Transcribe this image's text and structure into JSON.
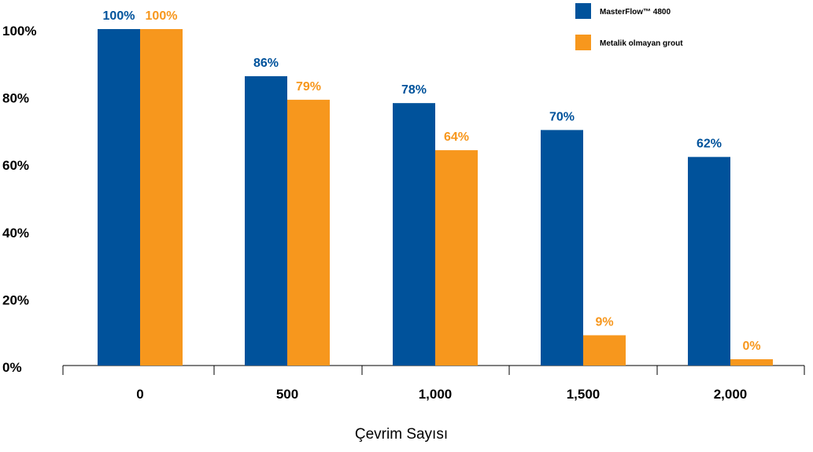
{
  "colors": {
    "series_1": "#00529b",
    "series_2": "#f7971d",
    "axis": "#000000",
    "background": "#ffffff"
  },
  "chart_data": {
    "type": "bar",
    "categories": [
      "0",
      "500",
      "1,000",
      "1,500",
      "2,000"
    ],
    "series": [
      {
        "name": "MasterFlow™ 4800",
        "values": [
          100,
          86,
          78,
          70,
          62
        ],
        "labels": [
          "100%",
          "86%",
          "78%",
          "70%",
          "62%"
        ]
      },
      {
        "name": "Metalik olmayan grout",
        "values": [
          100,
          79,
          64,
          9,
          0
        ],
        "labels": [
          "100%",
          "79%",
          "64%",
          "9%",
          "0%"
        ]
      }
    ],
    "xlabel": "Çevrim Sayısı",
    "ylabel": "",
    "ylim": [
      0,
      100
    ],
    "yticks": [
      "0%",
      "20%",
      "40%",
      "60%",
      "80%",
      "100%"
    ],
    "grid": false,
    "legend": "top-right"
  }
}
